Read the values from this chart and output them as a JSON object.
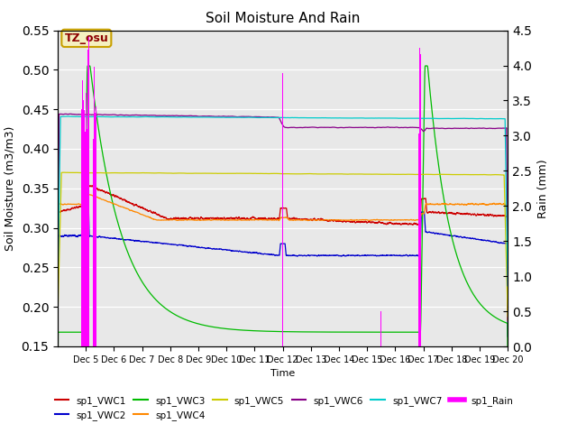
{
  "title": "Soil Moisture And Rain",
  "xlabel": "Time",
  "ylabel_left": "Soil Moisture (m3/m3)",
  "ylabel_right": "Rain (mm)",
  "ylim_left": [
    0.15,
    0.55
  ],
  "ylim_right": [
    0.0,
    4.5
  ],
  "xlim": [
    4.0,
    20.0
  ],
  "annotation_text": "TZ_osu",
  "annotation_color": "#8B0000",
  "annotation_bg": "#F5F0C0",
  "annotation_edge": "#C8A000",
  "colors": {
    "VWC1": "#CC0000",
    "VWC2": "#0000CC",
    "VWC3": "#00BB00",
    "VWC4": "#FF8800",
    "VWC5": "#CCCC00",
    "VWC6": "#880088",
    "VWC7": "#00CCCC",
    "Rain": "#FF00FF"
  },
  "bg_color": "#E8E8E8",
  "grid_color": "#FFFFFF",
  "tick_positions": [
    5,
    6,
    7,
    8,
    9,
    10,
    11,
    12,
    13,
    14,
    15,
    16,
    17,
    18,
    19,
    20
  ],
  "tick_labels": [
    "Dec 5",
    "Dec 6",
    "Dec 7",
    "Dec 8",
    "Dec 9",
    "Dec 10",
    "Dec 11",
    "Dec 12",
    "Dec 13",
    "Dec 14",
    "Dec 15",
    "Dec 16",
    "Dec 17",
    "Dec 18",
    "Dec 19",
    "Dec 20"
  ]
}
